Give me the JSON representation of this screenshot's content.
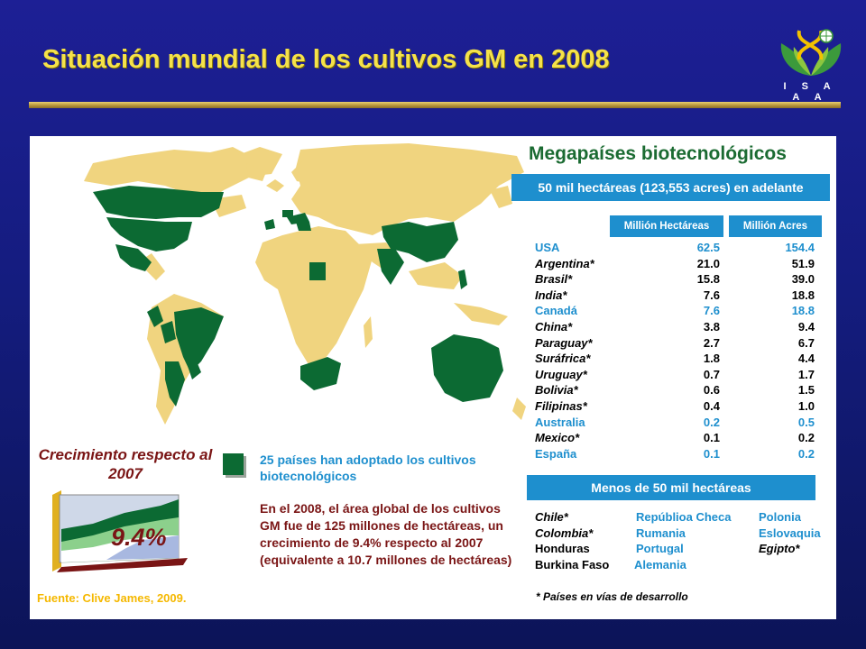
{
  "header": {
    "title": "Situación mundial de los cultivos GM en 2008",
    "logo_text": "I S A A A"
  },
  "colors": {
    "gm_country": "#0c6a33",
    "other_country": "#f0d47f",
    "accent_blue": "#1e8fce",
    "title_yellow": "#f5e24a",
    "dark_red": "#7a1515"
  },
  "mega": {
    "title": "Megapaíses biotecnológicos",
    "subtitle": "50 mil hectáreas (123,553 acres) en adelante",
    "col_hectares": "Millión Hectáreas",
    "col_acres": "Millión Acres",
    "rows": [
      {
        "country": "USA",
        "hectares": "62.5",
        "acres": "154.4",
        "highlight": true
      },
      {
        "country": "Argentina*",
        "hectares": "21.0",
        "acres": "51.9",
        "highlight": false
      },
      {
        "country": "Brasil*",
        "hectares": "15.8",
        "acres": "39.0",
        "highlight": false
      },
      {
        "country": "India*",
        "hectares": "7.6",
        "acres": "18.8",
        "highlight": false
      },
      {
        "country": "Canadá",
        "hectares": "7.6",
        "acres": "18.8",
        "highlight": true
      },
      {
        "country": "China*",
        "hectares": "3.8",
        "acres": "9.4",
        "highlight": false
      },
      {
        "country": "Paraguay*",
        "hectares": "2.7",
        "acres": "6.7",
        "highlight": false
      },
      {
        "country": "Suráfrica*",
        "hectares": "1.8",
        "acres": "4.4",
        "highlight": false
      },
      {
        "country": "Uruguay*",
        "hectares": "0.7",
        "acres": "1.7",
        "highlight": false
      },
      {
        "country": "Bolivia*",
        "hectares": "0.6",
        "acres": "1.5",
        "highlight": false
      },
      {
        "country": "Filipinas*",
        "hectares": "0.4",
        "acres": "1.0",
        "highlight": false
      },
      {
        "country": "Australia",
        "hectares": "0.2",
        "acres": "0.5",
        "highlight": true
      },
      {
        "country": "Mexico*",
        "hectares": "0.1",
        "acres": "0.2",
        "highlight": false
      },
      {
        "country": "España",
        "hectares": "0.1",
        "acres": "0.2",
        "highlight": true
      }
    ]
  },
  "less": {
    "title": "Menos de 50 mil hectáreas",
    "col1": [
      "Chile*",
      "Colombia*",
      "Honduras",
      "Burkina Faso"
    ],
    "col2": [
      "Repúblioa Checa",
      "Rumania",
      "Portugal",
      "Alemania"
    ],
    "col3": [
      "Polonia",
      "Eslovaquia",
      "Egipto*"
    ]
  },
  "footnote": "* Países en vías de desarrollo",
  "growth": {
    "title": "Crecimiento respecto al  2007",
    "value": "9.4%"
  },
  "legend": {
    "text": "25 países han adoptado los cultivos biotecnológicos"
  },
  "note": "En el 2008, el área global de los cultivos GM fue de 125 millones de hectáreas, un crecimiento de 9.4% respecto al 2007 (equivalente a  10.7 millones de hectáreas)",
  "source": "Fuente: Clive James, 2009."
}
